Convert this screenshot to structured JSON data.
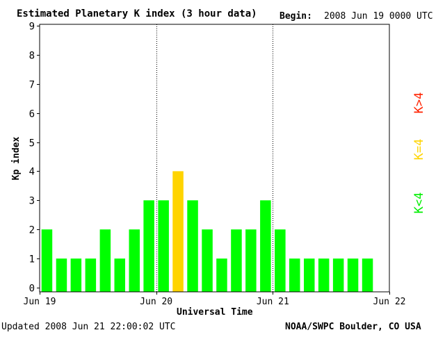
{
  "header": {
    "title": "Estimated Planetary K index (3 hour data)",
    "begin_label": "Begin:",
    "begin_value": "2008 Jun 19 0000 UTC"
  },
  "footer": {
    "updated": "Updated 2008 Jun 21 22:00:02 UTC",
    "source": "NOAA/SWPC Boulder, CO USA"
  },
  "legend": {
    "high": "K>4",
    "equal": "K=4",
    "low": "K<4"
  },
  "colors": {
    "low": "#00ff00",
    "equal": "#ffd400",
    "high": "#ff2200",
    "axis": "#000000"
  },
  "chart_data": {
    "type": "bar",
    "title": "Estimated Planetary K index (3 hour data)",
    "xlabel": "Universal Time",
    "ylabel": "Kp index",
    "ylim": [
      0,
      9
    ],
    "yticks": [
      "0",
      "1",
      "2",
      "3",
      "4",
      "5",
      "6",
      "7",
      "8",
      "9"
    ],
    "xticks": [
      "Jun 19",
      "Jun 20",
      "Jun 21",
      "Jun 22"
    ],
    "interval_hours": 3,
    "values": [
      2,
      1,
      1,
      1,
      2,
      1,
      2,
      3,
      3,
      4,
      3,
      2,
      1,
      2,
      2,
      3,
      2,
      1,
      1,
      1,
      1,
      1,
      1
    ],
    "day_separators": [
      "Jun 20",
      "Jun 21"
    ],
    "grid": false
  }
}
